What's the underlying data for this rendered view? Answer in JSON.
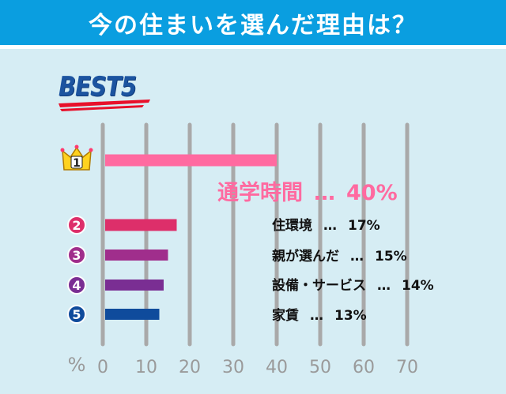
{
  "header": {
    "title": "今の住まいを選んだ理由は？"
  },
  "badge": {
    "text": "BEST5"
  },
  "axis": {
    "unit": "%"
  },
  "colors": {
    "header_bg": "#0a9ee0",
    "panel_bg": "#d6edf4",
    "rank1": "#ff6aa0",
    "rank2": "#dd2f6a",
    "rank3": "#a02e8c",
    "rank4": "#7a2e93",
    "rank5": "#0f4b9c",
    "grid": "#a9a9a9",
    "tick_text": "#9a9a9a",
    "crown": "#ffd21f"
  },
  "chart_data": {
    "type": "bar",
    "orientation": "horizontal",
    "xlim": [
      0,
      70
    ],
    "x_ticks": [
      "0",
      "10",
      "20",
      "30",
      "40",
      "50",
      "60",
      "70"
    ],
    "categories": [
      "通学時間",
      "住環境",
      "親が選んだ",
      "設備・サービス",
      "家賃"
    ],
    "ranks": [
      "1",
      "2",
      "3",
      "4",
      "5"
    ],
    "values": [
      40,
      17,
      15,
      14,
      13
    ],
    "value_labels": [
      "40%",
      "17%",
      "15%",
      "14%",
      "13%"
    ],
    "separator": "…",
    "grid": true
  }
}
